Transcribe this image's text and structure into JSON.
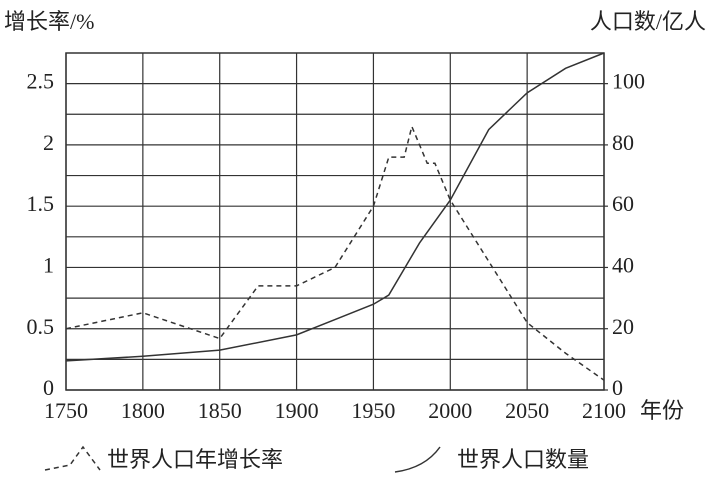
{
  "chart_data": {
    "type": "line",
    "y_title": "增长率/%",
    "y2_title": "人口数/亿人",
    "x_title": "年份",
    "xlim": [
      1750,
      2100
    ],
    "xticks": [
      1750,
      1800,
      1850,
      1900,
      1950,
      2000,
      2050,
      2100
    ],
    "ylim": [
      0,
      2.75
    ],
    "yticks": [
      0,
      0.5,
      1,
      1.5,
      2,
      2.5
    ],
    "y_minor_ticks": [
      0.25,
      0.75,
      1.25,
      1.75,
      2.25
    ],
    "y2lim": [
      0,
      110
    ],
    "y2ticks": [
      0,
      20,
      40,
      60,
      80,
      100
    ],
    "grid": true,
    "series": [
      {
        "name": "世界人口年增长率",
        "color": "#333333",
        "dashed": true,
        "x": [
          1750,
          1800,
          1850,
          1875,
          1900,
          1925,
          1950,
          1960,
          1970,
          1975,
          1985,
          1990,
          2000,
          2025,
          2050,
          2075,
          2100
        ],
        "values": [
          0.5,
          0.63,
          0.42,
          0.85,
          0.85,
          1.0,
          1.5,
          1.9,
          1.9,
          2.15,
          1.85,
          1.85,
          1.55,
          1.05,
          0.55,
          0.3,
          0.08
        ]
      },
      {
        "name": "世界人口数量",
        "color": "#333333",
        "dashed": false,
        "axis": "y2",
        "x": [
          1750,
          1800,
          1850,
          1900,
          1925,
          1950,
          1960,
          1980,
          2000,
          2025,
          2050,
          2075,
          2100
        ],
        "values": [
          9.5,
          11,
          13,
          18,
          23,
          28,
          31,
          48,
          62,
          85,
          97,
          105,
          110
        ]
      }
    ]
  }
}
